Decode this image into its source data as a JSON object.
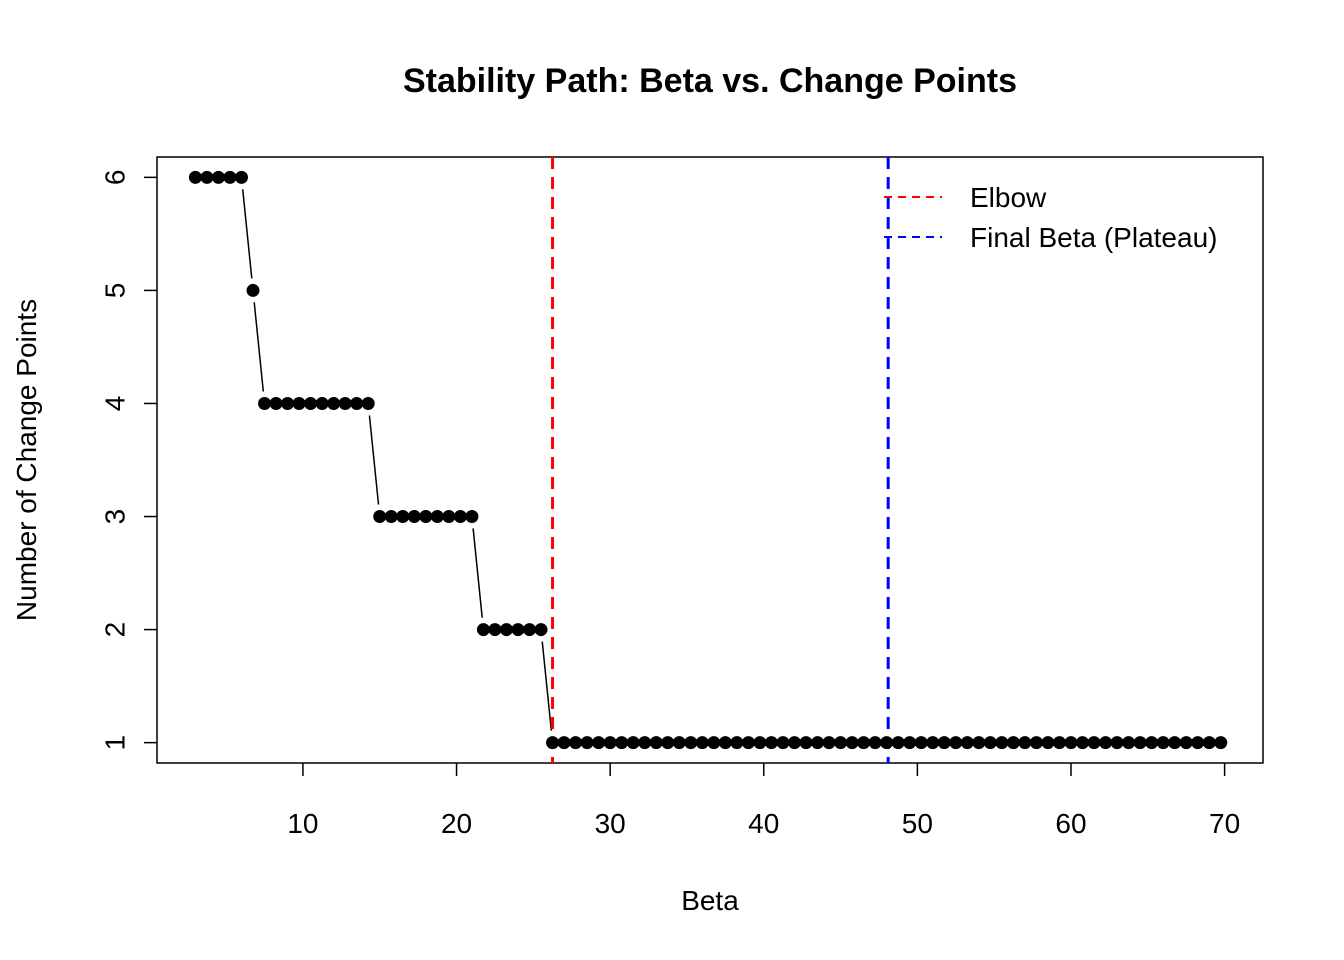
{
  "chart_data": {
    "type": "line",
    "title": "Stability Path: Beta vs. Change Points",
    "xlabel": "Beta",
    "ylabel": "Number of Change Points",
    "x_ticks": [
      10,
      20,
      30,
      40,
      50,
      60,
      70
    ],
    "y_ticks": [
      1,
      2,
      3,
      4,
      5,
      6
    ],
    "xlim": [
      0.5,
      72.5
    ],
    "ylim": [
      0.82,
      6.18
    ],
    "grid": false,
    "legend_position": "top-right",
    "series": [
      {
        "color": "#000000",
        "segments": [
          {
            "x_start": 3.0,
            "x_end": 6.0,
            "y": 6
          },
          {
            "x_start": 6.75,
            "x_end": 6.75,
            "y": 5
          },
          {
            "x_start": 7.5,
            "x_end": 14.25,
            "y": 4
          },
          {
            "x_start": 15.0,
            "x_end": 21.0,
            "y": 3
          },
          {
            "x_start": 21.75,
            "x_end": 25.5,
            "y": 2
          },
          {
            "x_start": 26.25,
            "x_end": 70.0,
            "y": 1
          }
        ],
        "step": 0.75
      }
    ],
    "vlines": [
      {
        "name": "Elbow",
        "x": 26.25,
        "color": "#ff0000",
        "style": "dashed"
      },
      {
        "name": "Final Beta (Plateau)",
        "x": 48.1,
        "color": "#0000ff",
        "style": "dashed"
      }
    ],
    "legend": [
      {
        "label": "Elbow",
        "color": "#ff0000"
      },
      {
        "label": "Final Beta (Plateau)",
        "color": "#0000ff"
      }
    ]
  }
}
